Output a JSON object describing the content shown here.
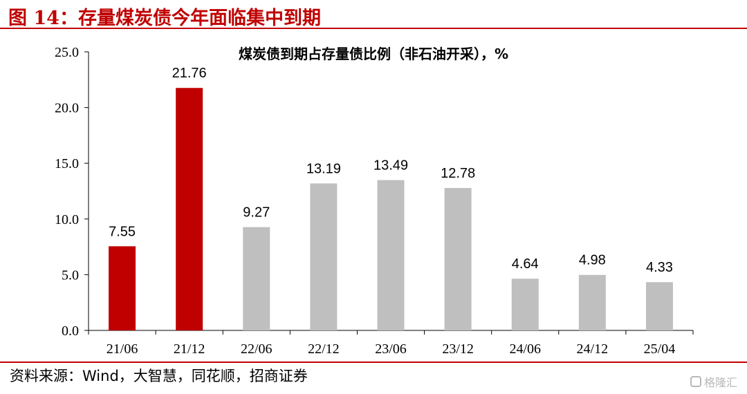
{
  "figure": {
    "title": "图 14：存量煤炭债今年面临集中到期",
    "source": "资料来源：Wind，大智慧，同花顺，招商证券",
    "watermark": "格隆汇"
  },
  "colors": {
    "accent": "#c00000",
    "highlight_bar": "#c00000",
    "normal_bar": "#bfbfbf"
  },
  "chart_data": {
    "type": "bar",
    "title": "煤炭债到期占存量债比例（非石油开采），%",
    "categories": [
      "21/06",
      "21/12",
      "22/06",
      "22/12",
      "23/06",
      "23/12",
      "24/06",
      "24/12",
      "25/04"
    ],
    "values": [
      7.55,
      21.76,
      9.27,
      13.19,
      13.49,
      12.78,
      4.64,
      4.98,
      4.33
    ],
    "value_labels": [
      "7.55",
      "21.76",
      "9.27",
      "13.19",
      "13.49",
      "12.78",
      "4.64",
      "4.98",
      "4.33"
    ],
    "highlighted": [
      true,
      true,
      false,
      false,
      false,
      false,
      false,
      false,
      false
    ],
    "ylim": [
      0,
      25
    ],
    "yticks": [
      "0.0",
      "5.0",
      "10.0",
      "15.0",
      "20.0",
      "25.0"
    ],
    "xlabel": "",
    "ylabel": "",
    "grid": false,
    "legend": "none"
  }
}
